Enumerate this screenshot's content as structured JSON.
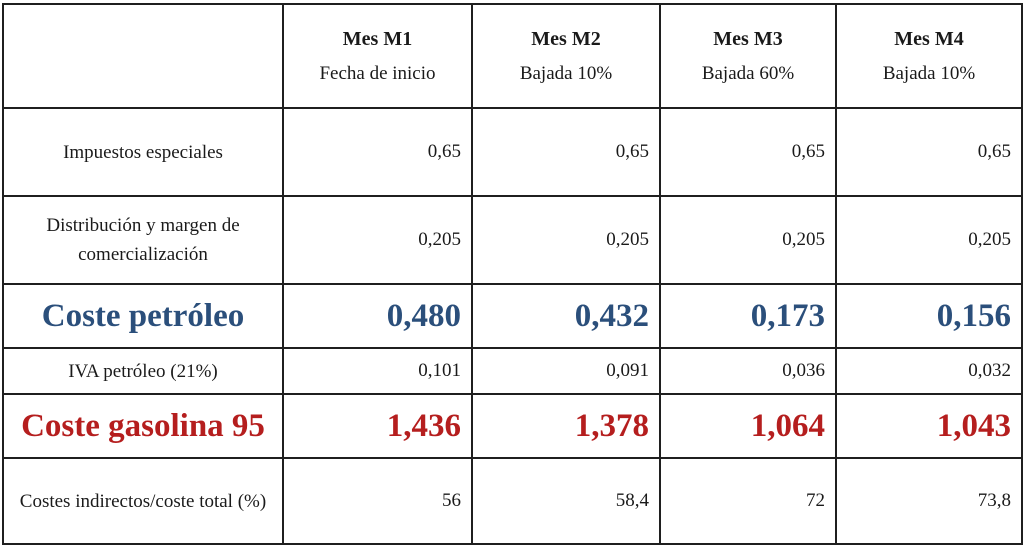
{
  "header": {
    "columns": [
      {
        "month": "Mes M1",
        "note": "Fecha de inicio"
      },
      {
        "month": "Mes M2",
        "note": "Bajada 10%"
      },
      {
        "month": "Mes M3",
        "note": "Bajada 60%"
      },
      {
        "month": "Mes M4",
        "note": "Bajada 10%"
      }
    ]
  },
  "rows": [
    {
      "label": "Impuestos especiales",
      "values": [
        "0,65",
        "0,65",
        "0,65",
        "0,65"
      ]
    },
    {
      "label": "Distribución y margen de comercialización",
      "values": [
        "0,205",
        "0,205",
        "0,205",
        "0,205"
      ]
    },
    {
      "label": "Coste petróleo",
      "values": [
        "0,480",
        "0,432",
        "0,173",
        "0,156"
      ]
    },
    {
      "label": "IVA petróleo (21%)",
      "values": [
        "0,101",
        "0,091",
        "0,036",
        "0,032"
      ]
    },
    {
      "label": "Coste gasolina 95",
      "values": [
        "1,436",
        "1,378",
        "1,064",
        "1,043"
      ]
    },
    {
      "label": "Costes indirectos/coste total (%)",
      "values": [
        "56",
        "58,4",
        "72",
        "73,8"
      ]
    }
  ],
  "colors": {
    "coste_petroleo": "#2b4f7b",
    "coste_gasolina": "#b51e1e",
    "border": "#1f1f1f"
  }
}
